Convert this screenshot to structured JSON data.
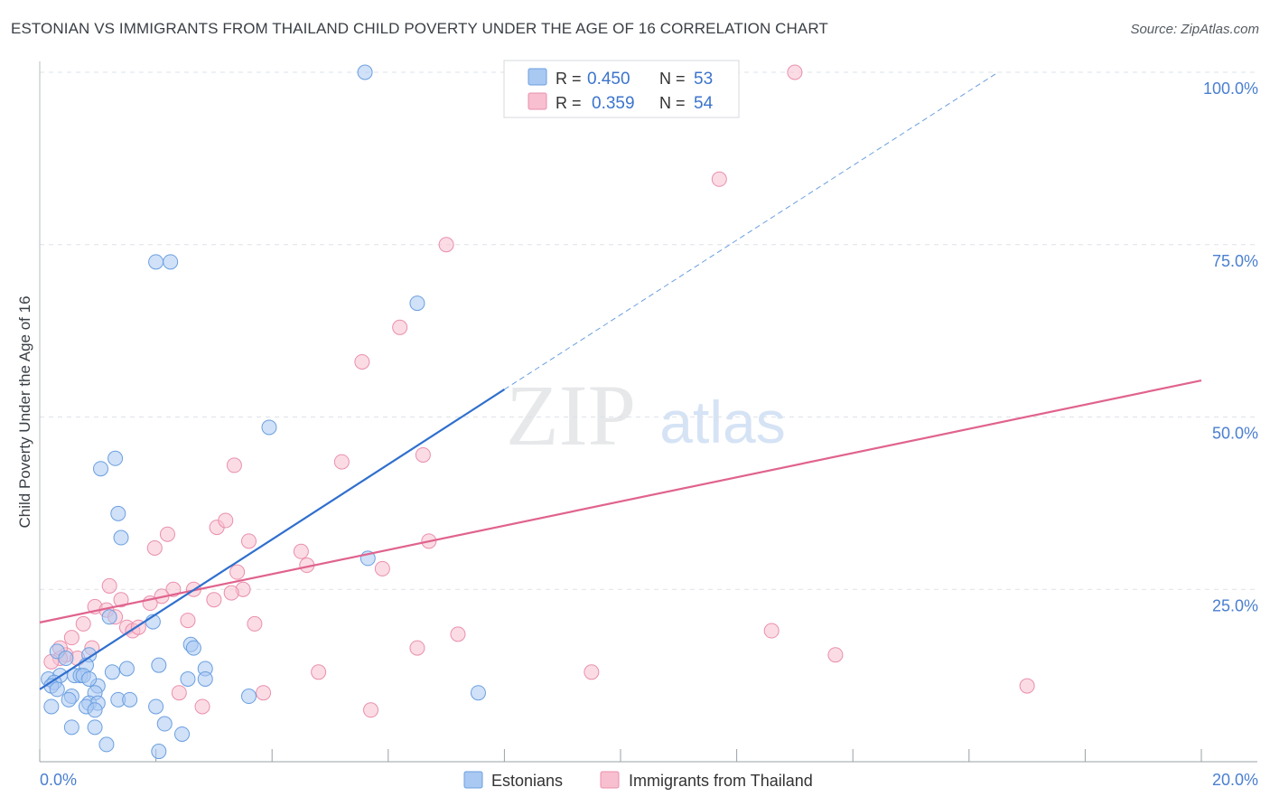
{
  "header": {
    "title": "ESTONIAN VS IMMIGRANTS FROM THAILAND CHILD POVERTY UNDER THE AGE OF 16 CORRELATION CHART",
    "source": "Source: ZipAtlas.com"
  },
  "watermark": {
    "zip": "ZIP",
    "atlas": "atlas"
  },
  "colors": {
    "estonian_fill": "#a9c8f2",
    "estonian_stroke": "#6b9fe0",
    "estonian_line": "#2f6fce",
    "thai_fill": "#f8bfd0",
    "thai_stroke": "#ea8fac",
    "thai_line": "#e0638d",
    "axis_label_blue": "#4a7fd0",
    "grid": "#dde2e8"
  },
  "chart_data": {
    "type": "scatter",
    "title": "ESTONIAN VS IMMIGRANTS FROM THAILAND CHILD POVERTY UNDER THE AGE OF 16 CORRELATION CHART",
    "xlabel": "",
    "ylabel": "Child Poverty Under the Age of 16",
    "xlim": [
      0,
      20
    ],
    "ylim": [
      0,
      100
    ],
    "x_tick_labels": [
      "0.0%",
      "20.0%"
    ],
    "y_tick_values": [
      25,
      50,
      75,
      100
    ],
    "y_tick_labels": [
      "25.0%",
      "50.0%",
      "75.0%",
      "100.0%"
    ],
    "legend": [
      {
        "name": "Estonians",
        "r_label": "R =",
        "r_value": "0.450",
        "n_label": "N =",
        "n_value": "53"
      },
      {
        "name": "Immigrants from Thailand",
        "r_label": "R =",
        "r_value": "0.359",
        "n_label": "N =",
        "n_value": "54"
      }
    ],
    "series": [
      {
        "name": "Estonians",
        "points": [
          [
            5.6,
            100
          ],
          [
            2.0,
            72.5
          ],
          [
            2.25,
            72.5
          ],
          [
            6.5,
            66.5
          ],
          [
            3.95,
            48.5
          ],
          [
            1.3,
            44
          ],
          [
            1.05,
            42.5
          ],
          [
            1.35,
            36
          ],
          [
            1.4,
            32.5
          ],
          [
            5.65,
            29.5
          ],
          [
            1.2,
            21
          ],
          [
            1.95,
            20.3
          ],
          [
            2.6,
            17
          ],
          [
            2.65,
            16.5
          ],
          [
            0.85,
            15.5
          ],
          [
            0.3,
            16
          ],
          [
            0.45,
            15
          ],
          [
            0.8,
            14
          ],
          [
            1.5,
            13.5
          ],
          [
            2.05,
            14
          ],
          [
            2.85,
            13.5
          ],
          [
            0.35,
            12.5
          ],
          [
            0.6,
            12.5
          ],
          [
            0.7,
            12.5
          ],
          [
            0.75,
            12.5
          ],
          [
            2.55,
            12
          ],
          [
            2.85,
            12
          ],
          [
            0.15,
            12
          ],
          [
            0.25,
            11.5
          ],
          [
            0.2,
            11
          ],
          [
            0.3,
            10.5
          ],
          [
            1.0,
            11
          ],
          [
            0.95,
            10
          ],
          [
            7.55,
            10
          ],
          [
            1.35,
            9
          ],
          [
            1.55,
            9
          ],
          [
            3.6,
            9.5
          ],
          [
            0.55,
            9.5
          ],
          [
            0.5,
            9
          ],
          [
            0.85,
            8.5
          ],
          [
            1.0,
            8.5
          ],
          [
            0.2,
            8
          ],
          [
            2.0,
            8
          ],
          [
            0.8,
            8
          ],
          [
            0.95,
            7.5
          ],
          [
            0.55,
            5
          ],
          [
            0.95,
            5
          ],
          [
            2.15,
            5.5
          ],
          [
            2.45,
            4
          ],
          [
            1.15,
            2.5
          ],
          [
            2.05,
            1.5
          ],
          [
            0.85,
            12
          ],
          [
            1.25,
            13
          ]
        ],
        "trend": {
          "x0": 0,
          "y0": 10.5,
          "x1": 8.0,
          "y1": 54.0,
          "dashed_to_x": 16.5,
          "dashed_to_y": 100
        }
      },
      {
        "name": "Immigrants from Thailand",
        "points": [
          [
            13.0,
            100
          ],
          [
            11.7,
            84.5
          ],
          [
            7.0,
            75
          ],
          [
            6.2,
            63
          ],
          [
            5.55,
            58
          ],
          [
            6.6,
            44.5
          ],
          [
            5.2,
            43.5
          ],
          [
            3.35,
            43
          ],
          [
            3.05,
            34
          ],
          [
            3.2,
            35
          ],
          [
            2.2,
            33
          ],
          [
            4.5,
            30.5
          ],
          [
            1.98,
            31
          ],
          [
            3.6,
            32
          ],
          [
            6.7,
            32
          ],
          [
            4.6,
            28.5
          ],
          [
            5.9,
            28
          ],
          [
            3.4,
            27.5
          ],
          [
            1.2,
            25.5
          ],
          [
            3.5,
            25
          ],
          [
            2.65,
            25
          ],
          [
            2.3,
            25
          ],
          [
            2.1,
            24
          ],
          [
            1.4,
            23.5
          ],
          [
            3.3,
            24.5
          ],
          [
            3.0,
            23.5
          ],
          [
            1.9,
            23
          ],
          [
            0.95,
            22.5
          ],
          [
            1.15,
            22
          ],
          [
            1.3,
            21
          ],
          [
            2.55,
            20.5
          ],
          [
            0.75,
            20
          ],
          [
            3.7,
            20
          ],
          [
            1.5,
            19.5
          ],
          [
            1.6,
            19
          ],
          [
            1.7,
            19.5
          ],
          [
            7.2,
            18.5
          ],
          [
            12.6,
            19
          ],
          [
            0.55,
            18
          ],
          [
            0.9,
            16.5
          ],
          [
            6.5,
            16.5
          ],
          [
            0.45,
            15.5
          ],
          [
            0.35,
            15
          ],
          [
            0.65,
            15
          ],
          [
            0.2,
            14.5
          ],
          [
            13.7,
            15.5
          ],
          [
            9.5,
            13
          ],
          [
            4.8,
            13
          ],
          [
            3.85,
            10
          ],
          [
            2.4,
            10
          ],
          [
            2.8,
            8
          ],
          [
            5.7,
            7.5
          ],
          [
            17.0,
            11
          ],
          [
            0.35,
            16.5
          ]
        ],
        "trend": {
          "x0": 0,
          "y0": 20.2,
          "x1": 20,
          "y1": 55.3
        }
      }
    ]
  }
}
